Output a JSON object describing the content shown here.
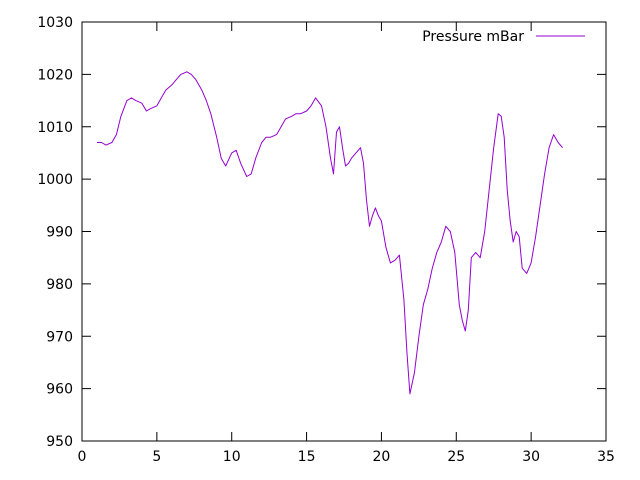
{
  "chart_data": {
    "type": "line",
    "title": "",
    "xlabel": "",
    "ylabel": "",
    "xlim": [
      0,
      35
    ],
    "ylim": [
      950,
      1030
    ],
    "xticks": [
      0,
      5,
      10,
      15,
      20,
      25,
      30,
      35
    ],
    "yticks": [
      950,
      960,
      970,
      980,
      990,
      1000,
      1010,
      1020,
      1030
    ],
    "grid": false,
    "legend": {
      "position": "top-right"
    },
    "series": [
      {
        "name": "Pressure mBar",
        "color": "#9400d3",
        "x": [
          1.0,
          1.3,
          1.6,
          2.0,
          2.3,
          2.6,
          3.0,
          3.3,
          3.6,
          4.0,
          4.3,
          4.6,
          5.0,
          5.3,
          5.6,
          6.0,
          6.3,
          6.6,
          7.0,
          7.3,
          7.6,
          8.0,
          8.3,
          8.6,
          9.0,
          9.3,
          9.6,
          10.0,
          10.3,
          10.6,
          11.0,
          11.3,
          11.6,
          12.0,
          12.3,
          12.6,
          13.0,
          13.3,
          13.6,
          14.0,
          14.3,
          14.6,
          15.0,
          15.3,
          15.6,
          16.0,
          16.3,
          16.6,
          16.8,
          17.0,
          17.2,
          17.4,
          17.6,
          17.8,
          18.0,
          18.3,
          18.6,
          18.8,
          19.0,
          19.2,
          19.4,
          19.6,
          19.8,
          20.0,
          20.3,
          20.6,
          20.9,
          21.2,
          21.5,
          21.7,
          21.9,
          22.2,
          22.5,
          22.8,
          23.1,
          23.4,
          23.7,
          24.0,
          24.3,
          24.6,
          24.9,
          25.2,
          25.4,
          25.6,
          25.8,
          26.0,
          26.3,
          26.6,
          26.9,
          27.2,
          27.5,
          27.8,
          28.0,
          28.2,
          28.4,
          28.6,
          28.8,
          29.0,
          29.2,
          29.4,
          29.7,
          30.0,
          30.3,
          30.6,
          30.9,
          31.2,
          31.5,
          31.8,
          32.1
        ],
        "values": [
          1007,
          1007,
          1006.5,
          1007,
          1008.5,
          1012,
          1015,
          1015.5,
          1015,
          1014.5,
          1013,
          1013.5,
          1014,
          1015.5,
          1017,
          1018,
          1019,
          1020,
          1020.5,
          1020,
          1019,
          1017,
          1015,
          1012.5,
          1008,
          1004,
          1002.5,
          1005,
          1005.5,
          1003,
          1000.5,
          1001,
          1004,
          1007,
          1008,
          1008,
          1008.5,
          1010,
          1011.5,
          1012,
          1012.5,
          1012.5,
          1013,
          1014,
          1015.5,
          1014,
          1010,
          1004,
          1001,
          1009,
          1010,
          1006,
          1002.5,
          1003,
          1004,
          1005,
          1006,
          1003,
          996,
          991,
          993,
          994.5,
          993,
          992,
          987,
          984,
          984.5,
          985.5,
          977,
          967,
          959,
          963,
          970,
          976,
          979,
          983,
          986,
          988,
          991,
          990,
          986,
          976,
          973,
          971,
          975,
          985,
          986,
          985,
          990,
          998,
          1006,
          1012.5,
          1012,
          1008,
          998,
          992,
          988,
          990,
          989,
          983,
          982,
          984,
          989,
          995,
          1001,
          1006,
          1008.5,
          1007,
          1006
        ]
      }
    ]
  }
}
